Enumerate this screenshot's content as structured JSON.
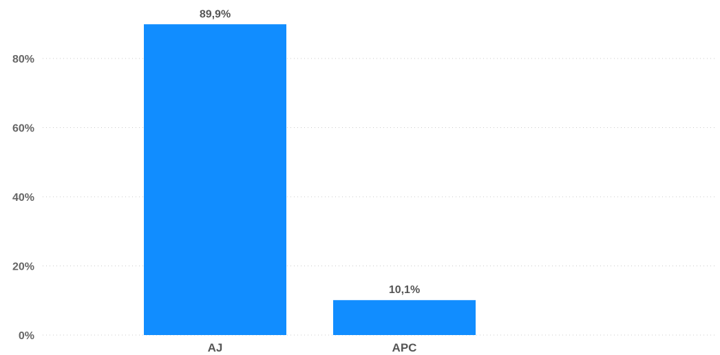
{
  "chart_data": {
    "type": "bar",
    "categories": [
      "AJ",
      "APC"
    ],
    "values": [
      89.9,
      10.1
    ],
    "data_labels": [
      "89,9%",
      "10,1%"
    ],
    "ylim": [
      0,
      90
    ],
    "yticks": [
      0,
      20,
      40,
      60,
      80
    ],
    "ytick_labels": [
      "0%",
      "20%",
      "40%",
      "60%",
      "80%"
    ],
    "grid": true,
    "bar_color": "#118DFF",
    "title": "",
    "xlabel": "",
    "ylabel": ""
  }
}
